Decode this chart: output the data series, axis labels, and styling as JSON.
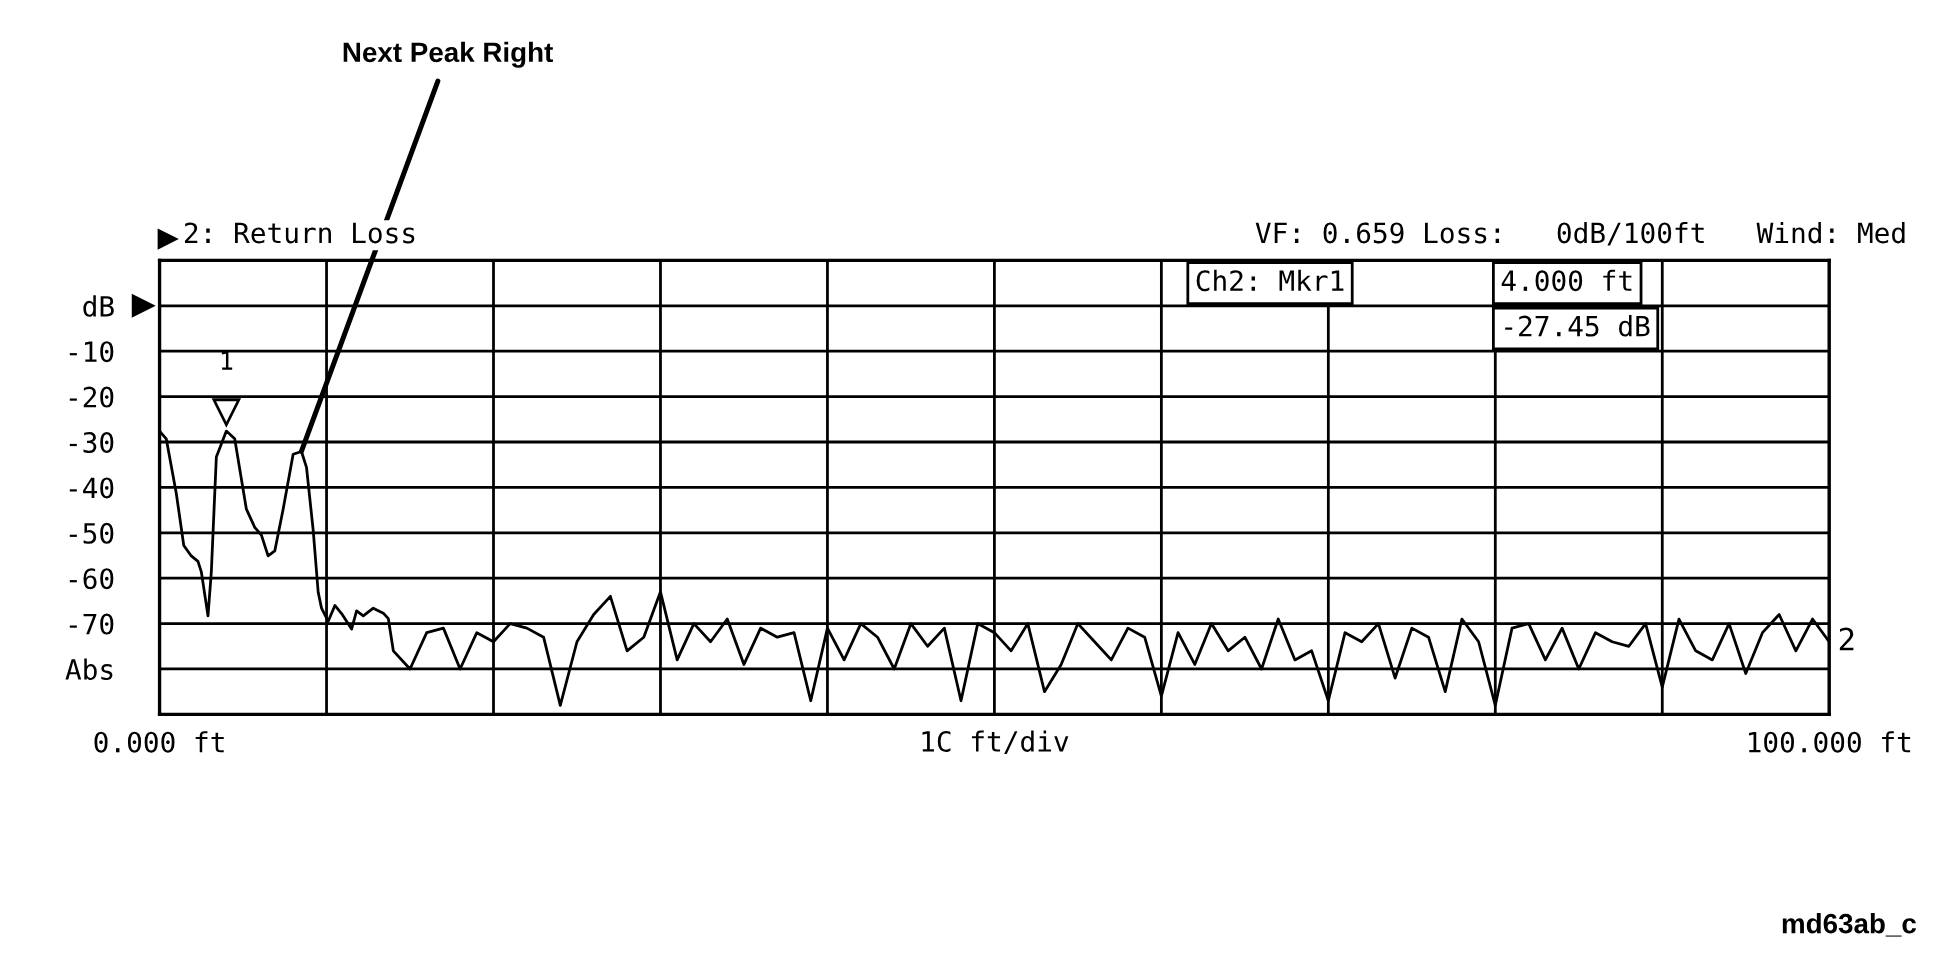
{
  "chart_data": {
    "type": "line",
    "title": "2: Return Loss",
    "subtitle": "VF: 0.659 Loss:   0dB/100ft   Wind: Med",
    "xlabel": "1C ft/div",
    "annotations": [
      {
        "text": "Next Peak Right",
        "x": 8.5,
        "y": -32
      },
      {
        "text": "1",
        "x": 4,
        "y": -27.45
      },
      "Ch2: Mkr1",
      "4.000 ft",
      "-27.45 dB",
      "md63ab_c"
    ],
    "xlim": [
      0,
      100
    ],
    "ylim": [
      -90,
      10
    ],
    "xticks": [
      {
        "value": 0,
        "label": "0.000 ft"
      },
      {
        "value": 10,
        "label": null
      },
      {
        "value": 20,
        "label": null
      },
      {
        "value": 30,
        "label": null
      },
      {
        "value": 40,
        "label": null
      },
      {
        "value": 50,
        "label": null
      },
      {
        "value": 60,
        "label": null
      },
      {
        "value": 70,
        "label": null
      },
      {
        "value": 80,
        "label": null
      },
      {
        "value": 90,
        "label": null
      },
      {
        "value": 100,
        "label": "100.000 ft"
      }
    ],
    "yticks": [
      {
        "value": 0,
        "label": "dB"
      },
      -10,
      -20,
      -30,
      -40,
      -50,
      -60,
      -70,
      {
        "value": -80,
        "label": "Abs"
      }
    ],
    "grid": true,
    "legend": false,
    "marker": "none",
    "line_style": "solid",
    "series": [
      {
        "name": "2",
        "color": "#000000",
        "x": [
          0,
          0.4,
          1.0,
          1.45,
          1.9,
          2.3,
          2.5,
          2.9,
          3.1,
          3.4,
          4.0,
          4.5,
          5.2,
          5.7,
          6.1,
          6.5,
          6.9,
          7.4,
          8.0,
          8.5,
          8.8,
          9.2,
          9.5,
          9.7,
          10.1,
          10.5,
          10.9,
          11.5,
          11.8,
          12.2,
          12.8,
          13.4,
          13.7,
          14,
          15,
          16,
          17,
          18,
          19,
          20,
          21,
          22,
          23,
          24,
          25,
          26,
          27,
          28,
          29,
          30,
          31,
          32,
          33,
          34,
          35,
          36,
          37,
          38,
          39,
          40,
          41,
          42,
          43,
          44,
          45,
          46,
          47,
          48,
          49,
          50,
          51,
          52,
          53,
          54,
          55,
          56,
          57,
          58,
          59,
          60,
          61,
          62,
          63,
          64,
          65,
          66,
          67,
          68,
          69,
          70,
          71,
          72,
          73,
          74,
          75,
          76,
          77,
          78,
          79,
          80,
          81,
          82,
          83,
          84,
          85,
          86,
          87,
          88,
          89,
          90,
          91,
          92,
          93,
          94,
          95,
          96,
          97,
          98,
          99,
          100
        ],
        "values": [
          -27.6,
          -29.3,
          -41.3,
          -52.8,
          -55.1,
          -56.3,
          -58.6,
          -68.3,
          -58.6,
          -33.3,
          -27.6,
          -29.3,
          -44.8,
          -48.8,
          -50.5,
          -55.1,
          -54,
          -44.8,
          -32.7,
          -32.1,
          -35.6,
          -49.4,
          -63.1,
          -66.6,
          -69.5,
          -66,
          -67.8,
          -71.2,
          -67.2,
          -68.3,
          -66.6,
          -67.7,
          -68.9,
          -76,
          -80,
          -72,
          -71,
          -80,
          -72,
          -74,
          -70,
          -71,
          -73,
          -88,
          -74,
          -68,
          -64,
          -76,
          -73,
          -63,
          -78,
          -70,
          -74,
          -69,
          -79,
          -71,
          -73,
          -72,
          -87,
          -71,
          -78,
          -70,
          -73,
          -80,
          -70,
          -75,
          -71,
          -87,
          -70,
          -72,
          -76,
          -70,
          -85,
          -79,
          -70,
          -74,
          -78,
          -71,
          -73,
          -86,
          -72,
          -79,
          -70,
          -76,
          -73,
          -80,
          -69,
          -78,
          -76,
          -87,
          -72,
          -74,
          -70,
          -82,
          -71,
          -73,
          -85,
          -69,
          -74,
          -88,
          -71,
          -70,
          -78,
          -71,
          -80,
          -72,
          -74,
          -75,
          -70,
          -84,
          -69,
          -76,
          -78,
          -70,
          -81,
          -72,
          -68,
          -76,
          -69,
          -74
        ]
      }
    ]
  }
}
